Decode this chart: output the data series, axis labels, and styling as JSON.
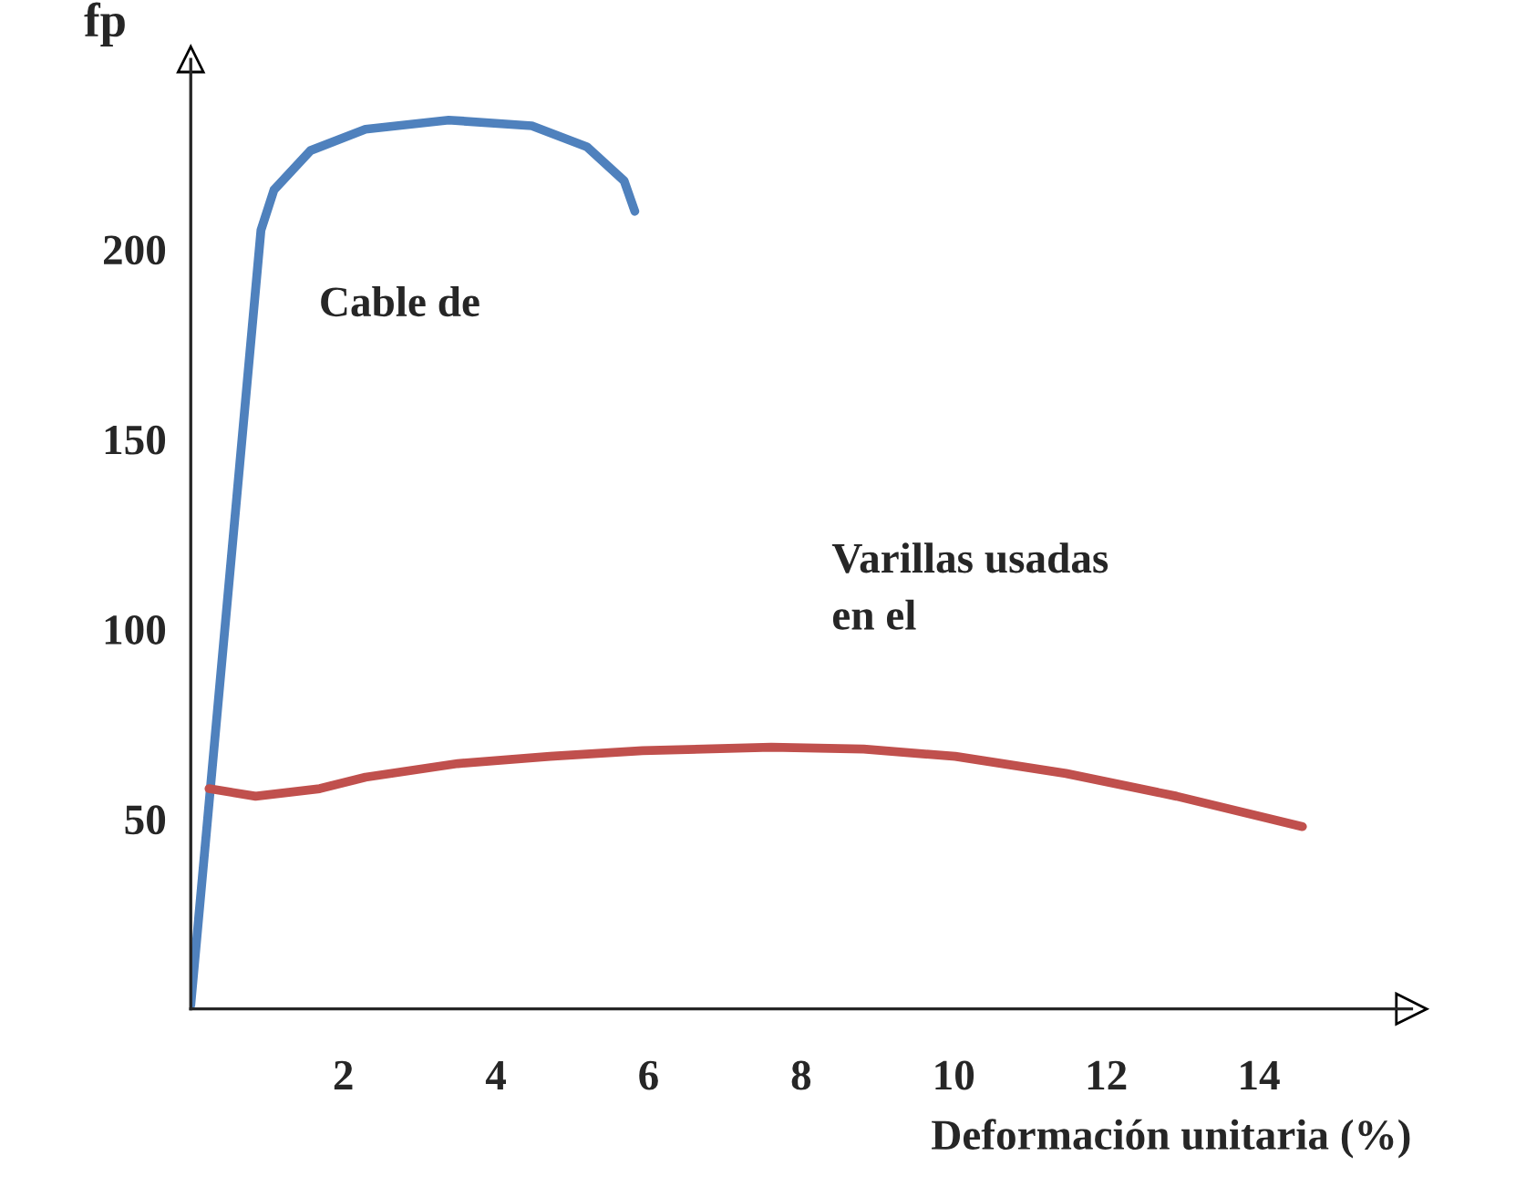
{
  "chart_data": {
    "type": "line",
    "xlabel": "Deformación unitaria (%)",
    "ylabel": "fp",
    "xlim": [
      0,
      16
    ],
    "ylim": [
      0,
      250
    ],
    "xticks": [
      2,
      4,
      6,
      8,
      10,
      12,
      14
    ],
    "yticks": [
      50,
      100,
      150,
      200
    ],
    "grid": false,
    "legend": false,
    "marker": "none",
    "line_style": "solid",
    "series": [
      {
        "color": "#4f81bd",
        "x": [
          0,
          0.92,
          1.09,
          1.57,
          2.29,
          3.38,
          4.47,
          5.19,
          5.68,
          5.82
        ],
        "values": [
          1,
          205,
          215.6,
          226,
          231.6,
          234,
          232.5,
          227,
          218,
          210
        ]
      },
      {
        "color": "#c0504d",
        "x": [
          0.24,
          0.85,
          1.69,
          2.29,
          3.5,
          4.71,
          5.92,
          7.61,
          8.82,
          10.02,
          11.47,
          12.92,
          14.57
        ],
        "values": [
          58,
          56,
          58,
          61,
          64.6,
          66.5,
          68,
          68.9,
          68.4,
          66.5,
          62,
          56,
          48
        ]
      }
    ],
    "annotations": [
      "Cable de",
      "Varillas usadas\nen el"
    ]
  }
}
